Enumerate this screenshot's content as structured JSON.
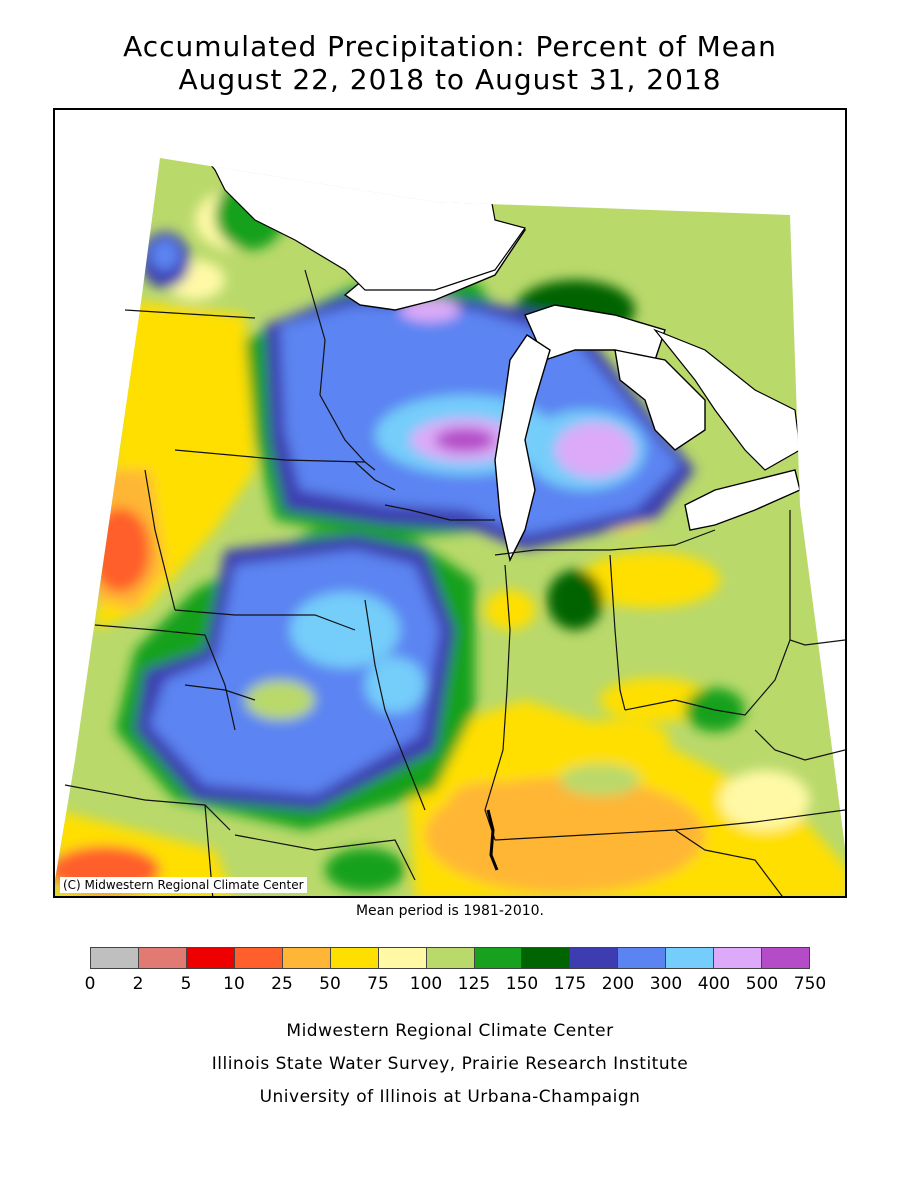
{
  "header": {
    "title_line1": "Accumulated Precipitation: Percent of Mean",
    "title_line2": "August 22, 2018 to August 31, 2018"
  },
  "map": {
    "copyright": "(C) Midwestern Regional Climate Center",
    "mean_note": "Mean period is 1981-2010."
  },
  "legend": {
    "colors": [
      "#bfbfbf",
      "#e07a73",
      "#ee0000",
      "#ff5f2a",
      "#ffb636",
      "#ffdf00",
      "#fff9a6",
      "#b9d96b",
      "#18a11e",
      "#006400",
      "#3d3cb0",
      "#5b84f2",
      "#74cdfa",
      "#dcaaf8",
      "#b44cc8"
    ],
    "labels": [
      "0",
      "2",
      "5",
      "10",
      "25",
      "50",
      "75",
      "100",
      "125",
      "150",
      "175",
      "200",
      "300",
      "400",
      "500",
      "750"
    ]
  },
  "footer": {
    "line1": "Midwestern Regional Climate Center",
    "line2": "Illinois State Water Survey, Prairie Research Institute",
    "line3": "University of Illinois at Urbana-Champaign"
  }
}
